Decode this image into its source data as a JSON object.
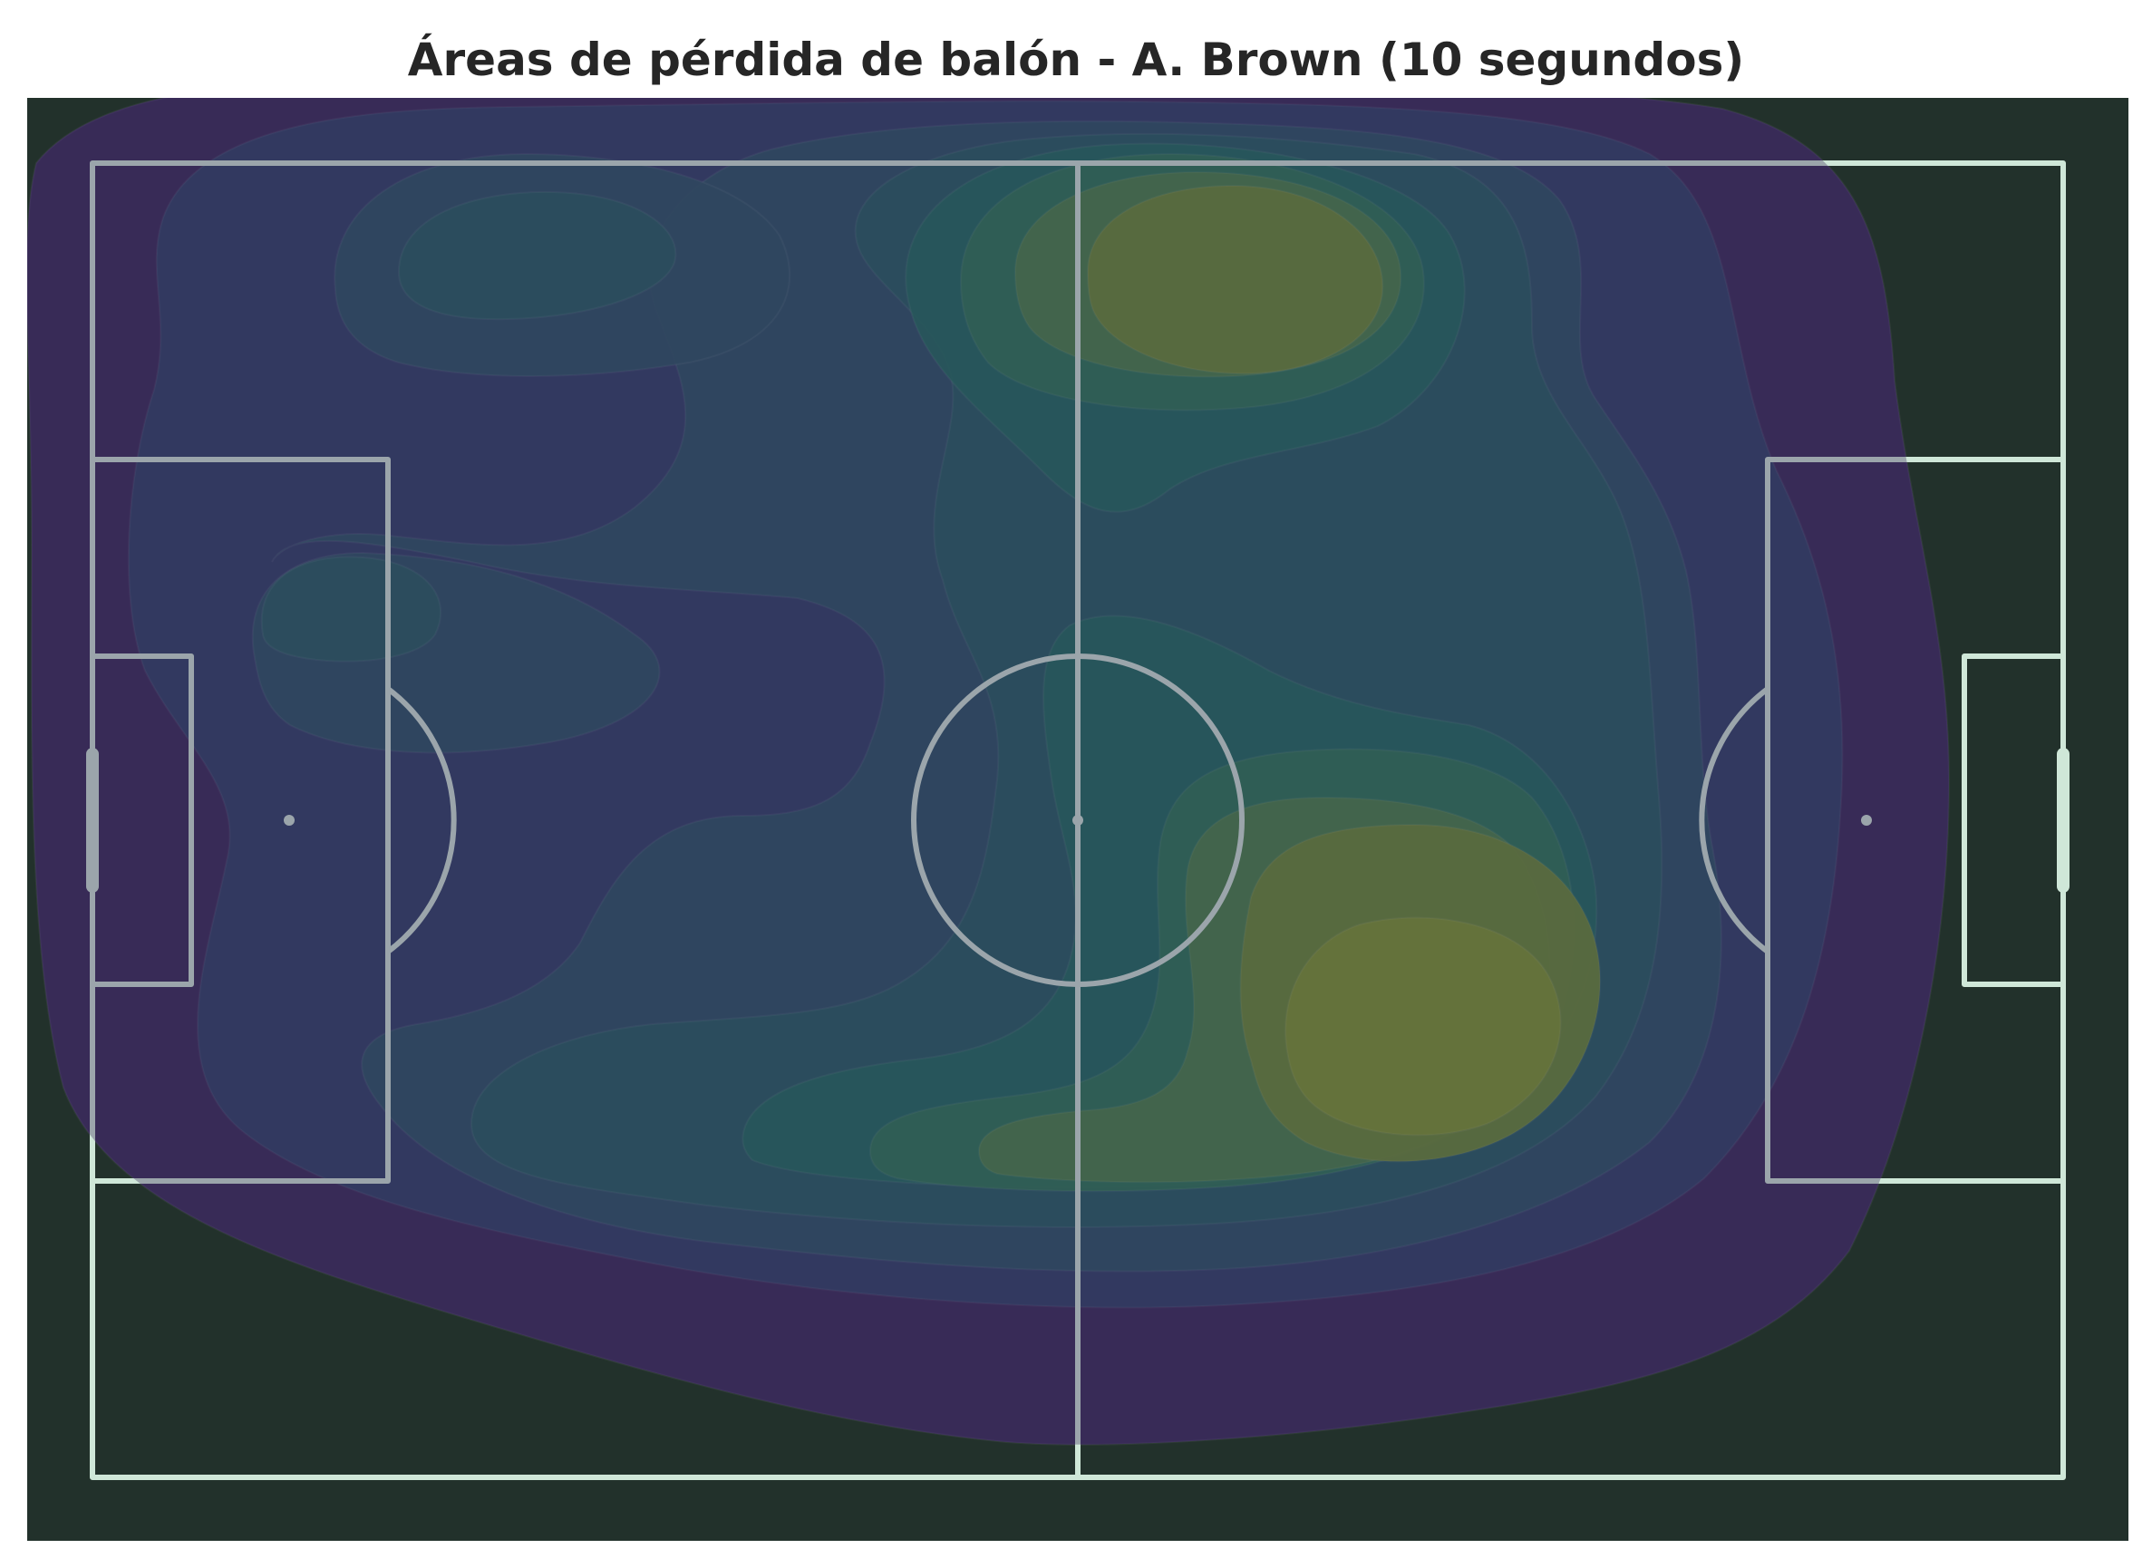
{
  "chart_data": {
    "type": "heatmap",
    "title": "Áreas de pérdida de balón - A. Brown (10 segundos)",
    "subtype": "kde-density-contours",
    "colormap": "viridis",
    "pitch": {
      "background": "#22312b",
      "line_color": "#cfe7d8",
      "x_range": [
        0,
        120
      ],
      "y_range": [
        0,
        80
      ]
    },
    "levels": 10,
    "level_colors": [
      "#3a2c5a",
      "#2f4466",
      "#2a5563",
      "#24615f",
      "#1e6e5c",
      "#2b7a52",
      "#4a8444",
      "#6a8c32",
      "#7f9a2c",
      "#94a628"
    ],
    "hotspots": [
      {
        "x": 66,
        "y": 11,
        "density": "peak"
      },
      {
        "x": 81,
        "y": 48,
        "density": "peak"
      },
      {
        "x": 22,
        "y": 6,
        "density": "moderate"
      },
      {
        "x": 14,
        "y": 28,
        "density": "moderate"
      },
      {
        "x": 52,
        "y": 58,
        "density": "moderate"
      }
    ]
  }
}
